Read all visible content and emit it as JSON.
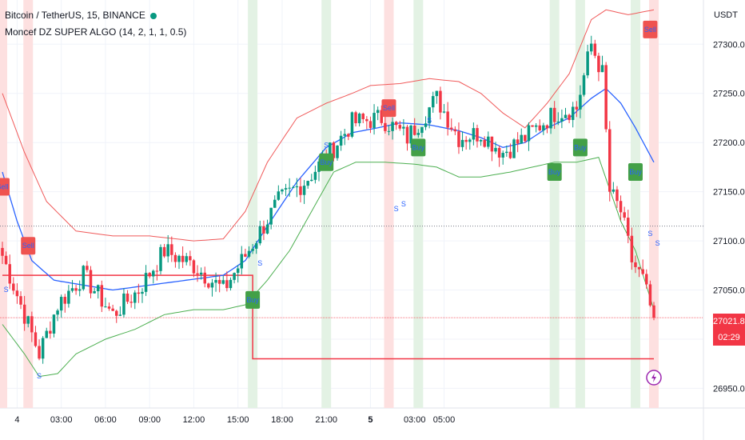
{
  "header": {
    "symbol": "Bitcoin / TetherUS, 15, BINANCE",
    "indicator": "Moncef DZ SUPER ALGO (14, 2, 1, 1, 0.5)"
  },
  "price_axis": {
    "unit": "USDT",
    "current_price": "27021.83",
    "countdown": "02:29"
  },
  "colors": {
    "up": "#089981",
    "down": "#f23645",
    "upper_band": "#f05a5a",
    "lower_band": "#4caf50",
    "middle": "#2962ff",
    "buy_zone": "#e3f2e4",
    "sell_zone": "#fde0e0",
    "sma_line": "#f23645"
  },
  "chart_data": {
    "type": "candlestick",
    "ylim": [
      26930,
      27345
    ],
    "xlim": [
      "00:45",
      "05:00"
    ],
    "y_ticks": [
      26950,
      27000,
      27050,
      27100,
      27150,
      27200,
      27250,
      27300
    ],
    "y_tick_labels": [
      "26950.00",
      "27000.00",
      "27050.00",
      "27100.00",
      "27150.00",
      "27200.00",
      "27250.00",
      "27300.00"
    ],
    "x_ticks": [
      {
        "t": "04 00:00",
        "label": "4",
        "bold": false
      },
      {
        "t": "04 03:00",
        "label": "03:00",
        "bold": false
      },
      {
        "t": "04 06:00",
        "label": "06:00",
        "bold": false
      },
      {
        "t": "04 09:00",
        "label": "09:00",
        "bold": false
      },
      {
        "t": "04 12:00",
        "label": "12:00",
        "bold": false
      },
      {
        "t": "04 15:00",
        "label": "15:00",
        "bold": false
      },
      {
        "t": "04 18:00",
        "label": "18:00",
        "bold": false
      },
      {
        "t": "04 21:00",
        "label": "21:00",
        "bold": false
      },
      {
        "t": "05 00:00",
        "label": "5",
        "bold": true
      },
      {
        "t": "05 03:00",
        "label": "03:00",
        "bold": false
      },
      {
        "t": "05 05:00",
        "label": "05:00",
        "bold": false
      }
    ],
    "waypoints": [
      {
        "i": 0,
        "close": 27085
      },
      {
        "i": 5,
        "close": 27035
      },
      {
        "i": 10,
        "close": 26985
      },
      {
        "i": 15,
        "close": 27035
      },
      {
        "i": 22,
        "close": 27065
      },
      {
        "i": 30,
        "close": 27025
      },
      {
        "i": 37,
        "close": 27050
      },
      {
        "i": 44,
        "close": 27090
      },
      {
        "i": 52,
        "close": 27075
      },
      {
        "i": 60,
        "close": 27050
      },
      {
        "i": 66,
        "close": 27085
      },
      {
        "i": 75,
        "close": 27140
      },
      {
        "i": 82,
        "close": 27160
      },
      {
        "i": 88,
        "close": 27185
      },
      {
        "i": 95,
        "close": 27220
      },
      {
        "i": 103,
        "close": 27225
      },
      {
        "i": 110,
        "close": 27205
      },
      {
        "i": 118,
        "close": 27245
      },
      {
        "i": 124,
        "close": 27205
      },
      {
        "i": 130,
        "close": 27210
      },
      {
        "i": 136,
        "close": 27190
      },
      {
        "i": 142,
        "close": 27205
      },
      {
        "i": 150,
        "close": 27230
      },
      {
        "i": 156,
        "close": 27235
      },
      {
        "i": 160,
        "close": 27300
      },
      {
        "i": 163,
        "close": 27270
      },
      {
        "i": 165,
        "close": 27150
      },
      {
        "i": 168,
        "close": 27130
      },
      {
        "i": 171,
        "close": 27080
      },
      {
        "i": 174,
        "close": 27060
      },
      {
        "i": 177,
        "close": 27020
      }
    ],
    "upper_band": [
      {
        "i": 0,
        "v": 27250
      },
      {
        "i": 6,
        "v": 27190
      },
      {
        "i": 12,
        "v": 27140
      },
      {
        "i": 20,
        "v": 27110
      },
      {
        "i": 30,
        "v": 27105
      },
      {
        "i": 40,
        "v": 27105
      },
      {
        "i": 52,
        "v": 27100
      },
      {
        "i": 60,
        "v": 27102
      },
      {
        "i": 66,
        "v": 27130
      },
      {
        "i": 72,
        "v": 27180
      },
      {
        "i": 80,
        "v": 27225
      },
      {
        "i": 88,
        "v": 27240
      },
      {
        "i": 95,
        "v": 27250
      },
      {
        "i": 100,
        "v": 27258
      },
      {
        "i": 108,
        "v": 27260
      },
      {
        "i": 116,
        "v": 27265
      },
      {
        "i": 124,
        "v": 27262
      },
      {
        "i": 130,
        "v": 27250
      },
      {
        "i": 136,
        "v": 27230
      },
      {
        "i": 142,
        "v": 27215
      },
      {
        "i": 148,
        "v": 27240
      },
      {
        "i": 154,
        "v": 27270
      },
      {
        "i": 160,
        "v": 27325
      },
      {
        "i": 164,
        "v": 27335
      },
      {
        "i": 170,
        "v": 27330
      },
      {
        "i": 177,
        "v": 27335
      }
    ],
    "lower_band": [
      {
        "i": 0,
        "v": 27015
      },
      {
        "i": 6,
        "v": 26985
      },
      {
        "i": 10,
        "v": 26962
      },
      {
        "i": 15,
        "v": 26965
      },
      {
        "i": 20,
        "v": 26985
      },
      {
        "i": 28,
        "v": 27000
      },
      {
        "i": 36,
        "v": 27010
      },
      {
        "i": 44,
        "v": 27025
      },
      {
        "i": 52,
        "v": 27030
      },
      {
        "i": 60,
        "v": 27030
      },
      {
        "i": 66,
        "v": 27035
      },
      {
        "i": 72,
        "v": 27060
      },
      {
        "i": 78,
        "v": 27090
      },
      {
        "i": 84,
        "v": 27130
      },
      {
        "i": 90,
        "v": 27170
      },
      {
        "i": 96,
        "v": 27180
      },
      {
        "i": 104,
        "v": 27180
      },
      {
        "i": 112,
        "v": 27178
      },
      {
        "i": 118,
        "v": 27175
      },
      {
        "i": 124,
        "v": 27165
      },
      {
        "i": 130,
        "v": 27165
      },
      {
        "i": 138,
        "v": 27170
      },
      {
        "i": 144,
        "v": 27175
      },
      {
        "i": 150,
        "v": 27180
      },
      {
        "i": 156,
        "v": 27180
      },
      {
        "i": 162,
        "v": 27185
      },
      {
        "i": 168,
        "v": 27120
      },
      {
        "i": 172,
        "v": 27090
      },
      {
        "i": 177,
        "v": 27030
      }
    ],
    "middle_line": [
      {
        "i": 0,
        "v": 27170
      },
      {
        "i": 4,
        "v": 27120
      },
      {
        "i": 8,
        "v": 27080
      },
      {
        "i": 14,
        "v": 27060
      },
      {
        "i": 22,
        "v": 27055
      },
      {
        "i": 30,
        "v": 27050
      },
      {
        "i": 40,
        "v": 27055
      },
      {
        "i": 50,
        "v": 27060
      },
      {
        "i": 60,
        "v": 27065
      },
      {
        "i": 66,
        "v": 27080
      },
      {
        "i": 72,
        "v": 27115
      },
      {
        "i": 80,
        "v": 27160
      },
      {
        "i": 88,
        "v": 27195
      },
      {
        "i": 95,
        "v": 27210
      },
      {
        "i": 102,
        "v": 27215
      },
      {
        "i": 108,
        "v": 27220
      },
      {
        "i": 116,
        "v": 27218
      },
      {
        "i": 124,
        "v": 27212
      },
      {
        "i": 130,
        "v": 27205
      },
      {
        "i": 136,
        "v": 27195
      },
      {
        "i": 142,
        "v": 27200
      },
      {
        "i": 148,
        "v": 27215
      },
      {
        "i": 154,
        "v": 27225
      },
      {
        "i": 160,
        "v": 27245
      },
      {
        "i": 164,
        "v": 27255
      },
      {
        "i": 168,
        "v": 27240
      },
      {
        "i": 172,
        "v": 27215
      },
      {
        "i": 177,
        "v": 27180
      }
    ],
    "sma_step_line": [
      {
        "i": 0,
        "v": 27065
      },
      {
        "i": 68,
        "v": 27065
      },
      {
        "i": 68,
        "v": 26980
      },
      {
        "i": 177,
        "v": 26980
      }
    ],
    "dotted_level": 27115,
    "current_price_level": 27021.83,
    "buy_zones": [
      68,
      88,
      113,
      150,
      157,
      172
    ],
    "sell_zones": [
      0,
      7,
      105,
      177
    ],
    "signals": [
      {
        "i": 0,
        "type": "sell",
        "label": "Sell",
        "price": 27155
      },
      {
        "i": 7,
        "type": "sell",
        "label": "Sell",
        "price": 27095
      },
      {
        "i": 105,
        "type": "sell",
        "label": "Sell",
        "price": 27235
      },
      {
        "i": 176,
        "type": "sell",
        "label": "Sell",
        "price": 27315
      },
      {
        "i": 68,
        "type": "buy",
        "label": "Buy",
        "price": 27040
      },
      {
        "i": 88,
        "type": "buy",
        "label": "Buy",
        "price": 27180
      },
      {
        "i": 113,
        "type": "buy",
        "label": "Buy",
        "price": 27195
      },
      {
        "i": 150,
        "type": "buy",
        "label": "Buy",
        "price": 27170
      },
      {
        "i": 157,
        "type": "buy",
        "label": "Buy",
        "price": 27195
      },
      {
        "i": 172,
        "type": "buy",
        "label": "Buy",
        "price": 27170
      }
    ],
    "s_markers": [
      {
        "i": 1,
        "price": 27048
      },
      {
        "i": 10,
        "price": 26960
      },
      {
        "i": 70,
        "price": 27075
      },
      {
        "i": 88,
        "price": 27195
      },
      {
        "i": 107,
        "price": 27130
      },
      {
        "i": 109,
        "price": 27135
      },
      {
        "i": 116,
        "price": 27220
      },
      {
        "i": 176,
        "price": 27105
      },
      {
        "i": 178,
        "price": 27095
      }
    ]
  }
}
